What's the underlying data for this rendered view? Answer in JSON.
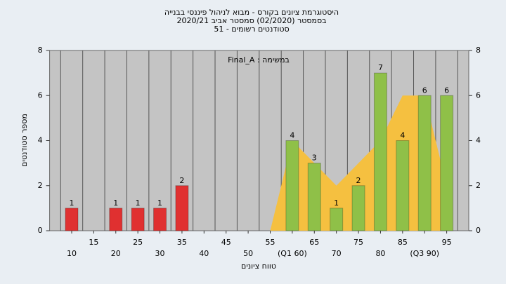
{
  "chart_data": {
    "type": "bar",
    "title": "היסטוגרמת ציונים בקורס - מבוא לניהול פיננסי בבנייה",
    "subtitle": "בסמסטר (02/2020) סמסטר אביב 2020/21",
    "subtitle2": "סטודנטים רשומים - 51",
    "annotation": "במשימה : Final_A",
    "xlabel": "טווח ציונים",
    "ylabel": "מספר סטודנטים",
    "x": [
      10,
      15,
      20,
      25,
      30,
      35,
      40,
      45,
      50,
      55,
      60,
      65,
      70,
      75,
      80,
      85,
      90,
      95
    ],
    "values": [
      1,
      0,
      1,
      1,
      1,
      2,
      0,
      0,
      0,
      0,
      4,
      3,
      1,
      2,
      7,
      4,
      6,
      6
    ],
    "colors": [
      "#e03030",
      "#e03030",
      "#e03030",
      "#e03030",
      "#e03030",
      "#e03030",
      "#e03030",
      "#e03030",
      "#e03030",
      "#e03030",
      "#8fc048",
      "#8fc048",
      "#8fc048",
      "#8fc048",
      "#8fc048",
      "#8fc048",
      "#8fc048",
      "#8fc048"
    ],
    "area": {
      "x": [
        55,
        60,
        65,
        70,
        75,
        80,
        85,
        90,
        95
      ],
      "values": [
        0,
        4,
        3,
        2,
        3,
        4,
        6,
        6,
        2
      ],
      "color": "#f5c040"
    },
    "xlim": [
      5,
      100
    ],
    "xticks": [
      10,
      15,
      20,
      25,
      30,
      35,
      40,
      45,
      50,
      55,
      {
        "value": 60,
        "label": "(Q1 60)"
      },
      65,
      70,
      75,
      80,
      85,
      {
        "value": 90,
        "label": "(Q3 90)"
      },
      95
    ],
    "ylim": [
      0,
      8
    ],
    "yticks": [
      0,
      2,
      4,
      6,
      8
    ],
    "y2ticks": [
      0,
      2,
      4,
      6,
      8
    ],
    "grid": true
  }
}
